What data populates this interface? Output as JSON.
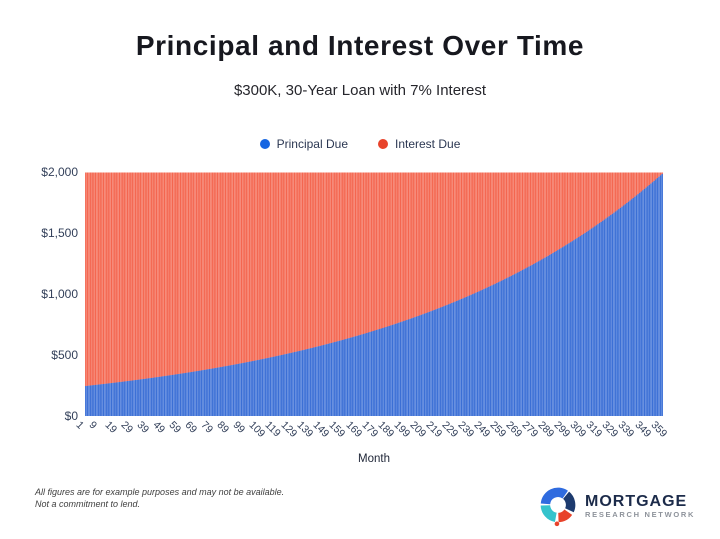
{
  "title": "Principal and Interest Over Time",
  "subtitle": "$300K, 30-Year Loan with 7% Interest",
  "legend": {
    "items": [
      {
        "label": "Principal Due",
        "color": "#1565e2"
      },
      {
        "label": "Interest Due",
        "color": "#e8432b"
      }
    ]
  },
  "chart_data": {
    "type": "bar",
    "stacked": true,
    "title": "Principal and Interest Over Time",
    "subtitle": "$300K, 30-Year Loan with 7% Interest",
    "xlabel": "Month",
    "ylabel": "",
    "ylim": [
      0,
      2000
    ],
    "grid": false,
    "legend_position": "top",
    "bar_count": 360,
    "loan": {
      "amount": 300000,
      "annual_rate_percent": 7,
      "term_years": 30,
      "term_months": 360,
      "monthly_payment": 1995.91
    },
    "y_ticks": [
      {
        "label": "$2,000",
        "value": 2000
      },
      {
        "label": "$1,500",
        "value": 1500
      },
      {
        "label": "$1,000",
        "value": 1000
      },
      {
        "label": "$500",
        "value": 500
      },
      {
        "label": "$0",
        "value": 0
      }
    ],
    "x_tick_months": [
      1,
      9,
      19,
      29,
      39,
      49,
      59,
      69,
      79,
      89,
      99,
      109,
      119,
      129,
      139,
      149,
      159,
      169,
      179,
      189,
      199,
      209,
      219,
      229,
      239,
      249,
      259,
      269,
      279,
      289,
      299,
      309,
      319,
      329,
      339,
      349,
      359
    ],
    "series": [
      {
        "name": "Principal Due",
        "color": "#3b6fd5",
        "stripe_color": "#6f95e3",
        "values_at_ticks": [
          246,
          258,
          273,
          289,
          307,
          325,
          345,
          365,
          387,
          411,
          435,
          461,
          489,
          518,
          549,
          582,
          617,
          654,
          694,
          735,
          779,
          826,
          876,
          928,
          984,
          1043,
          1106,
          1172,
          1242,
          1317,
          1396,
          1479,
          1568,
          1662,
          1762,
          1868,
          1980
        ]
      },
      {
        "name": "Interest Due",
        "color": "#f4664f",
        "stripe_color": "#f79384",
        "values_at_ticks": [
          1750,
          1738,
          1723,
          1706,
          1689,
          1671,
          1651,
          1630,
          1609,
          1585,
          1561,
          1535,
          1507,
          1478,
          1447,
          1414,
          1379,
          1341,
          1302,
          1261,
          1217,
          1170,
          1120,
          1068,
          1012,
          953,
          890,
          824,
          754,
          679,
          600,
          517,
          428,
          334,
          234,
          128,
          16
        ]
      }
    ]
  },
  "footer": {
    "disclaimer_line1": "All figures are for example purposes and may not be available.",
    "disclaimer_line2": "Not a commitment to lend.",
    "logo": {
      "title": "MORTGAGE",
      "subtitle": "RESEARCH NETWORK",
      "colors": {
        "blue": "#2f6bdf",
        "navy": "#1d3a6e",
        "teal": "#35c3cc",
        "red": "#e8432b"
      }
    }
  }
}
